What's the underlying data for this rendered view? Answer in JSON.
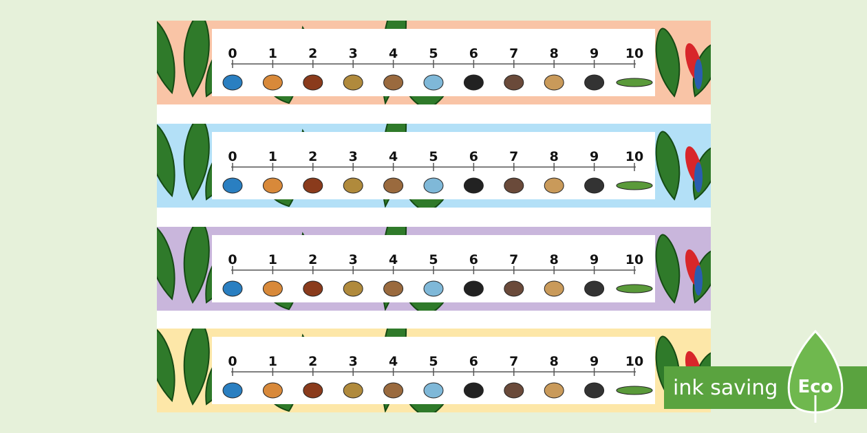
{
  "strips": [
    {
      "color": "#f9c4a6",
      "numbers": [
        0,
        1,
        2,
        3,
        4,
        5,
        6,
        7,
        8,
        9,
        10
      ]
    },
    {
      "color": "#b3e0f7",
      "numbers": [
        0,
        1,
        2,
        3,
        4,
        5,
        6,
        7,
        8,
        9,
        10
      ]
    },
    {
      "color": "#c9b6dc",
      "numbers": [
        0,
        1,
        2,
        3,
        4,
        5,
        6,
        7,
        8,
        9,
        10
      ]
    },
    {
      "color": "#fde7a8",
      "numbers": [
        0,
        1,
        2,
        3,
        4,
        5,
        6,
        7,
        8,
        9,
        10
      ]
    }
  ],
  "badge": {
    "text": "ink saving",
    "label": "Eco"
  }
}
